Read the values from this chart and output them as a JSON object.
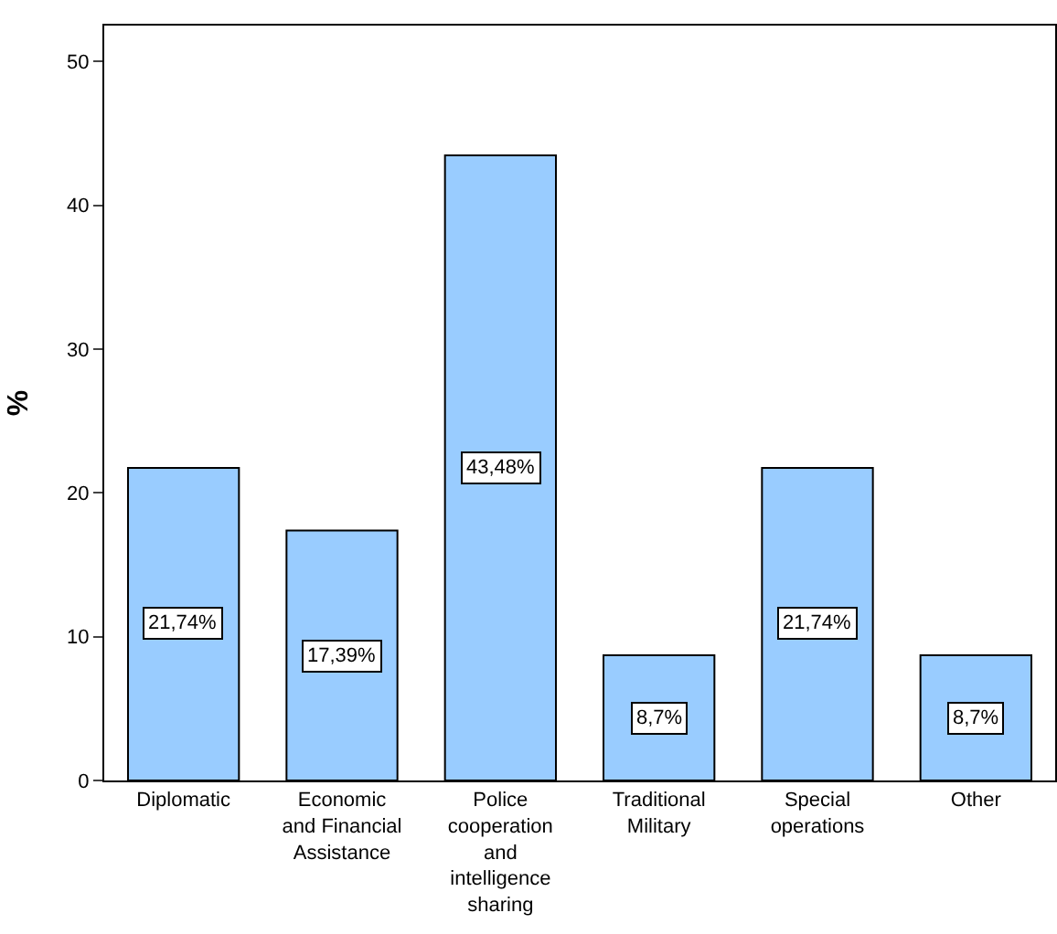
{
  "chart_data": {
    "type": "bar",
    "ylabel": "%",
    "categories": [
      "Diplomatic",
      "Economic and Financial Assistance",
      "Police cooperation and intelligence sharing",
      "Traditional Military",
      "Special operations",
      "Other"
    ],
    "values": [
      21.74,
      17.39,
      43.48,
      8.7,
      21.74,
      8.7
    ],
    "value_labels": [
      "21,74%",
      "17,39%",
      "43,48%",
      "8,7%",
      "21,74%",
      "8,7%"
    ],
    "color": "#99ccff",
    "ylim": [
      0,
      52.5
    ],
    "yticks": [
      0,
      10,
      20,
      30,
      40,
      50
    ],
    "grid": false
  }
}
